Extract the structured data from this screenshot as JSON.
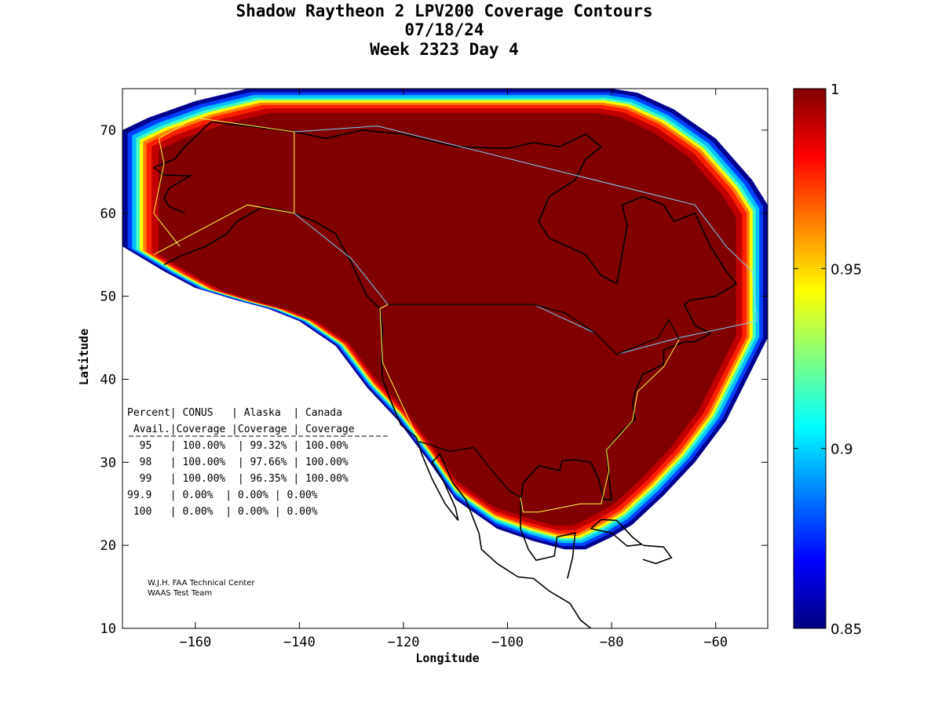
{
  "title": {
    "line1": "Shadow Raytheon 2 LPV200 Coverage Contours",
    "line2": "07/18/24",
    "line3": "Week 2323 Day 4"
  },
  "axes": {
    "xlabel": "Longitude",
    "ylabel": "Latitude",
    "xlim": [
      -174,
      -50
    ],
    "ylim": [
      10,
      75
    ],
    "xticks": [
      -160,
      -140,
      -120,
      -100,
      -80,
      -60
    ],
    "yticks": [
      10,
      20,
      30,
      40,
      50,
      60,
      70
    ]
  },
  "colorbar": {
    "range": [
      0.85,
      1
    ],
    "ticks": [
      "1",
      "0.95",
      "0.9",
      "0.85"
    ],
    "colormap": [
      "#800000",
      "#ff0000",
      "#ff8000",
      "#ffff00",
      "#80ff80",
      "#00ffff",
      "#0080ff",
      "#0000ff",
      "#000080"
    ]
  },
  "coverage_table": {
    "header1": "Percent| CONUS   | Alaska  | Canada",
    "header2": " Avail.|Coverage |Coverage | Coverage",
    "rows": [
      "  95   | 100.00%  | 99.32% | 100.00%",
      "  98   | 100.00%  | 97.66% | 100.00%",
      "  99   | 100.00%  | 96.35% | 100.00%",
      "99.9   | 0.00%  | 0.00% | 0.00%",
      " 100   | 0.00%  | 0.00% | 0.00%"
    ]
  },
  "credit": {
    "line1": "W.J.H. FAA Technical Center",
    "line2": "WAAS Test Team"
  },
  "chart_data": {
    "type": "heatmap",
    "title": "Shadow Raytheon 2 LPV200 Coverage Contours",
    "xlabel": "Longitude",
    "ylabel": "Latitude",
    "xlim": [
      -174,
      -50
    ],
    "ylim": [
      10,
      75
    ],
    "value_range": [
      0.85,
      1
    ],
    "interior_value": 1,
    "coverage_boundary_lonlat": [
      [
        -174,
        70
      ],
      [
        -169,
        71.5
      ],
      [
        -160,
        73.5
      ],
      [
        -150,
        75
      ],
      [
        -80,
        75
      ],
      [
        -75,
        74.5
      ],
      [
        -68,
        72.5
      ],
      [
        -60,
        69
      ],
      [
        -53,
        64
      ],
      [
        -50,
        61
      ],
      [
        -50,
        45
      ],
      [
        -54,
        40
      ],
      [
        -58,
        35
      ],
      [
        -64,
        30
      ],
      [
        -70,
        26
      ],
      [
        -76,
        22.5
      ],
      [
        -80,
        21
      ],
      [
        -85,
        19.5
      ],
      [
        -89,
        19.5
      ],
      [
        -95,
        20.5
      ],
      [
        -102,
        22
      ],
      [
        -110,
        25.5
      ],
      [
        -115,
        30
      ],
      [
        -121,
        35
      ],
      [
        -127,
        39
      ],
      [
        -133,
        44
      ],
      [
        -140,
        47
      ],
      [
        -146,
        48.5
      ],
      [
        -152,
        49.5
      ],
      [
        -160,
        51
      ],
      [
        -166,
        53
      ],
      [
        -174,
        56
      ]
    ],
    "contour_colors": [
      "#800000",
      "#c00000",
      "#ff2000",
      "#ff8000",
      "#ffff00",
      "#40ffc0",
      "#00c0ff",
      "#0040ff",
      "#000090"
    ]
  }
}
